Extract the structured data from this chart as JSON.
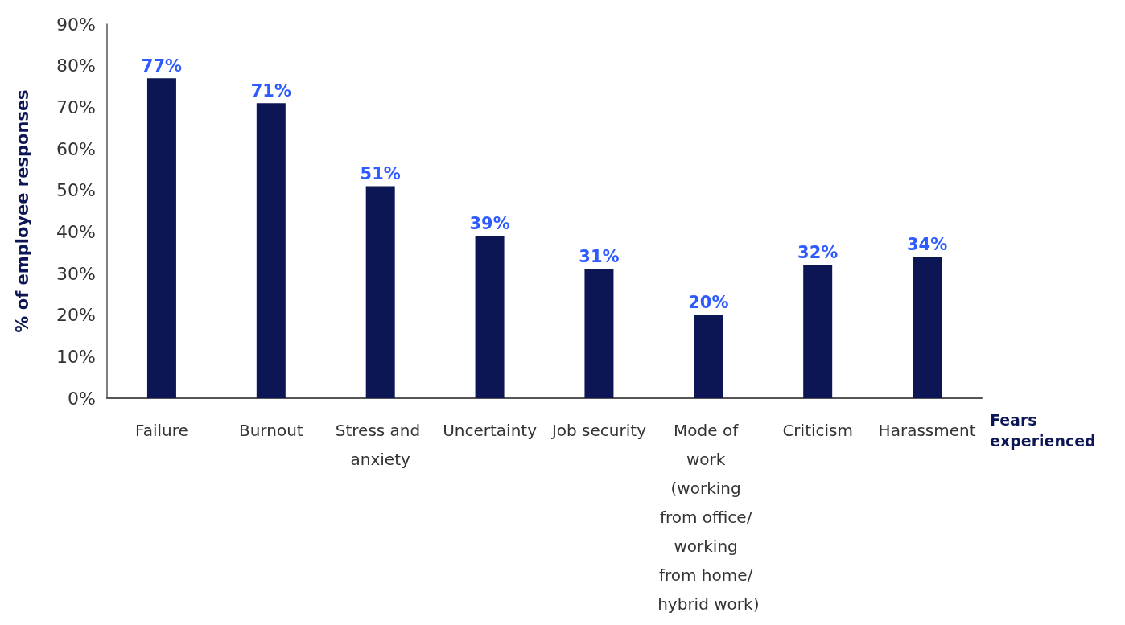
{
  "chart_data": {
    "type": "bar",
    "categories": [
      "Failure",
      "Burnout",
      "Stress and anxiety",
      "Uncertainty",
      "Job security",
      "Mode of work (working from office/ working from home/ hybrid work)",
      "Criticism",
      "Harassment"
    ],
    "values": [
      77,
      71,
      51,
      39,
      31,
      20,
      32,
      34
    ],
    "value_labels": [
      "77%",
      "71%",
      "51%",
      "39%",
      "31%",
      "20%",
      "32%",
      "34%"
    ],
    "color": "#0d1654",
    "xlabel": "Fears experienced",
    "ylabel": "% of employee responses",
    "ylim": [
      0,
      90
    ],
    "yticks": [
      {
        "value": 0,
        "label": "0%"
      },
      {
        "value": 10,
        "label": "10%"
      },
      {
        "value": 20,
        "label": "20%"
      },
      {
        "value": 30,
        "label": "30%"
      },
      {
        "value": 40,
        "label": "40%"
      },
      {
        "value": 50,
        "label": "50%"
      },
      {
        "value": 60,
        "label": "60%"
      },
      {
        "value": 70,
        "label": "70%"
      },
      {
        "value": 80,
        "label": "80%"
      },
      {
        "value": 90,
        "label": "90%"
      }
    ],
    "grid": false
  }
}
